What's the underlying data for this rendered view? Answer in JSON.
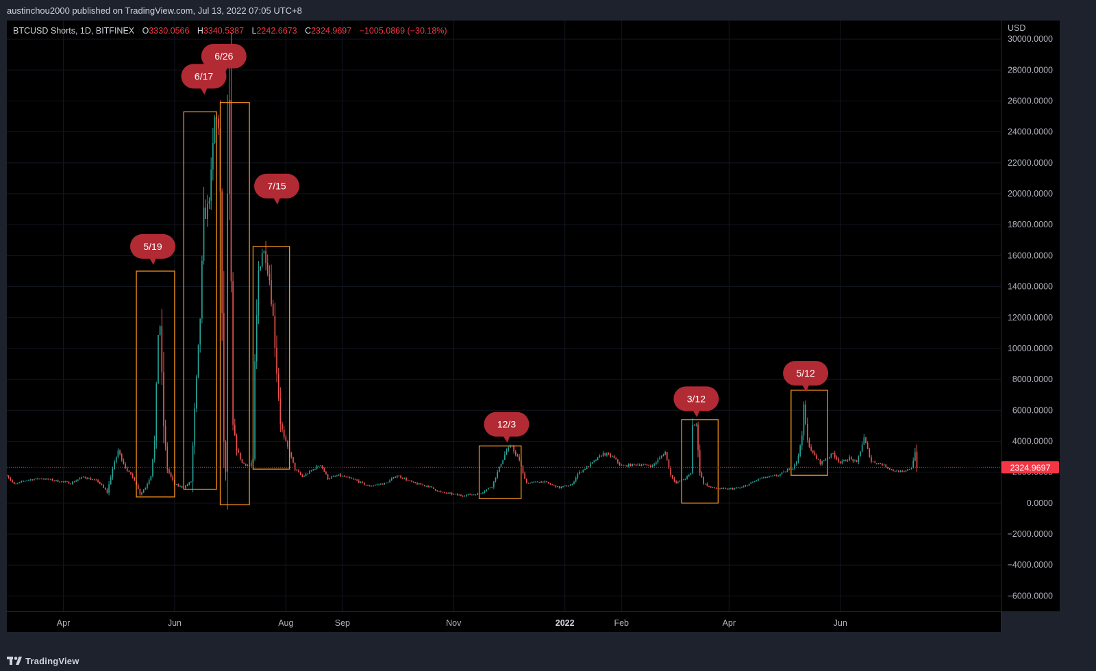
{
  "header": {
    "published_by": "austinchou2000 published on TradingView.com, Jul 13, 2022 07:05 UTC+8"
  },
  "legend": {
    "symbol": "BTCUSD Shorts, 1D, BITFINEX",
    "open_label": "O",
    "open": "3330.0566",
    "high_label": "H",
    "high": "3340.5387",
    "low_label": "L",
    "low": "2242.6673",
    "close_label": "C",
    "close": "2324.9697",
    "change": "−1005.0869 (−30.18%)"
  },
  "footer": {
    "brand": "TradingView"
  },
  "colors": {
    "background": "#000000",
    "frame": "#1e222d",
    "up": "#26a69a",
    "down": "#ef5350",
    "box": "#f7931a",
    "callout": "#b22a33",
    "price_line": "#f23645"
  },
  "chart_data": {
    "type": "candlestick",
    "symbol": "BTCUSD Shorts",
    "interval": "1D",
    "exchange": "BITFINEX",
    "y_axis_unit": "USD",
    "ylim": [
      -7000,
      31200
    ],
    "y_ticks": [
      30000,
      28000,
      26000,
      24000,
      22000,
      20000,
      18000,
      16000,
      14000,
      12000,
      10000,
      8000,
      6000,
      4000,
      2000,
      0,
      -2000,
      -4000,
      -6000
    ],
    "y_tick_labels": [
      "30000.0000",
      "28000.0000",
      "26000.0000",
      "24000.0000",
      "22000.0000",
      "20000.0000",
      "18000.0000",
      "16000.0000",
      "14000.0000",
      "12000.0000",
      "10000.0000",
      "8000.0000",
      "6000.0000",
      "4000.0000",
      "2000.0000",
      "0.0000",
      "−2000.0000",
      "−4000.0000",
      "−6000.0000"
    ],
    "x_range": [
      "2021-03-01",
      "2022-08-28"
    ],
    "x_ticks": [
      {
        "date": "2021-04-01",
        "label": "Apr",
        "bold": false
      },
      {
        "date": "2021-06-01",
        "label": "Jun",
        "bold": false
      },
      {
        "date": "2021-08-01",
        "label": "Aug",
        "bold": false
      },
      {
        "date": "2021-09-01",
        "label": "Sep",
        "bold": false
      },
      {
        "date": "2021-11-01",
        "label": "Nov",
        "bold": false
      },
      {
        "date": "2022-01-01",
        "label": "2022",
        "bold": true
      },
      {
        "date": "2022-02-01",
        "label": "Feb",
        "bold": false
      },
      {
        "date": "2022-04-01",
        "label": "Apr",
        "bold": false
      },
      {
        "date": "2022-06-01",
        "label": "Jun",
        "bold": false
      }
    ],
    "last_price": 2324.9697,
    "last_price_label": "2324.9697",
    "trend": [
      [
        "2021-03-01",
        1800
      ],
      [
        "2021-03-05",
        1200
      ],
      [
        "2021-03-12",
        1500
      ],
      [
        "2021-03-20",
        1600
      ],
      [
        "2021-03-28",
        1450
      ],
      [
        "2021-04-05",
        1300
      ],
      [
        "2021-04-12",
        1700
      ],
      [
        "2021-04-20",
        1400
      ],
      [
        "2021-04-25",
        700
      ],
      [
        "2021-04-28",
        2200
      ],
      [
        "2021-05-01",
        3400
      ],
      [
        "2021-05-05",
        2300
      ],
      [
        "2021-05-10",
        1500
      ],
      [
        "2021-05-13",
        600
      ],
      [
        "2021-05-16",
        1000
      ],
      [
        "2021-05-19",
        1800
      ],
      [
        "2021-05-21",
        4000
      ],
      [
        "2021-05-23",
        11000
      ],
      [
        "2021-05-24",
        11500
      ],
      [
        "2021-05-26",
        5000
      ],
      [
        "2021-05-28",
        2200
      ],
      [
        "2021-06-01",
        1200
      ],
      [
        "2021-06-06",
        1000
      ],
      [
        "2021-06-10",
        1400
      ],
      [
        "2021-06-12",
        6000
      ],
      [
        "2021-06-15",
        12000
      ],
      [
        "2021-06-17",
        18600
      ],
      [
        "2021-06-19",
        19000
      ],
      [
        "2021-06-21",
        21000
      ],
      [
        "2021-06-23",
        24800
      ],
      [
        "2021-06-25",
        24600
      ],
      [
        "2021-06-26",
        20000
      ],
      [
        "2021-06-27",
        12000
      ],
      [
        "2021-06-28",
        4000
      ],
      [
        "2021-06-29",
        2000
      ],
      [
        "2021-06-30",
        20000
      ],
      [
        "2021-07-01",
        25500
      ],
      [
        "2021-07-02",
        14000
      ],
      [
        "2021-07-03",
        5000
      ],
      [
        "2021-07-05",
        3500
      ],
      [
        "2021-07-08",
        2600
      ],
      [
        "2021-07-12",
        2400
      ],
      [
        "2021-07-14",
        2800
      ],
      [
        "2021-07-15",
        9000
      ],
      [
        "2021-07-17",
        15000
      ],
      [
        "2021-07-19",
        16300
      ],
      [
        "2021-07-21",
        16000
      ],
      [
        "2021-07-23",
        14500
      ],
      [
        "2021-07-25",
        12000
      ],
      [
        "2021-07-27",
        8500
      ],
      [
        "2021-07-29",
        5200
      ],
      [
        "2021-07-31",
        4200
      ],
      [
        "2021-08-03",
        3300
      ],
      [
        "2021-08-06",
        2200
      ],
      [
        "2021-08-10",
        1700
      ],
      [
        "2021-08-15",
        2100
      ],
      [
        "2021-08-20",
        2500
      ],
      [
        "2021-08-24",
        1600
      ],
      [
        "2021-08-30",
        1800
      ],
      [
        "2021-09-08",
        1500
      ],
      [
        "2021-09-15",
        1100
      ],
      [
        "2021-09-25",
        1300
      ],
      [
        "2021-10-01",
        1800
      ],
      [
        "2021-10-10",
        1300
      ],
      [
        "2021-10-18",
        1100
      ],
      [
        "2021-10-25",
        700
      ],
      [
        "2021-11-05",
        500
      ],
      [
        "2021-11-15",
        600
      ],
      [
        "2021-11-22",
        1100
      ],
      [
        "2021-11-26",
        2300
      ],
      [
        "2021-11-30",
        3400
      ],
      [
        "2021-12-03",
        3700
      ],
      [
        "2021-12-05",
        3100
      ],
      [
        "2021-12-07",
        2800
      ],
      [
        "2021-12-09",
        1900
      ],
      [
        "2021-12-11",
        1300
      ],
      [
        "2021-12-20",
        1400
      ],
      [
        "2021-12-29",
        1000
      ],
      [
        "2022-01-05",
        1200
      ],
      [
        "2022-01-08",
        1900
      ],
      [
        "2022-01-15",
        2500
      ],
      [
        "2022-01-22",
        3200
      ],
      [
        "2022-01-27",
        3000
      ],
      [
        "2022-02-01",
        2400
      ],
      [
        "2022-02-10",
        2500
      ],
      [
        "2022-02-18",
        2400
      ],
      [
        "2022-02-25",
        3300
      ],
      [
        "2022-02-28",
        1800
      ],
      [
        "2022-03-03",
        1300
      ],
      [
        "2022-03-08",
        1600
      ],
      [
        "2022-03-11",
        1900
      ],
      [
        "2022-03-12",
        5100
      ],
      [
        "2022-03-14",
        5000
      ],
      [
        "2022-03-16",
        2000
      ],
      [
        "2022-03-18",
        1300
      ],
      [
        "2022-03-22",
        1000
      ],
      [
        "2022-03-30",
        900
      ],
      [
        "2022-04-08",
        1000
      ],
      [
        "2022-04-18",
        1600
      ],
      [
        "2022-04-28",
        1800
      ],
      [
        "2022-05-06",
        2300
      ],
      [
        "2022-05-09",
        3000
      ],
      [
        "2022-05-11",
        4500
      ],
      [
        "2022-05-12",
        6200
      ],
      [
        "2022-05-14",
        4000
      ],
      [
        "2022-05-17",
        3200
      ],
      [
        "2022-05-21",
        2600
      ],
      [
        "2022-05-28",
        3200
      ],
      [
        "2022-06-01",
        2600
      ],
      [
        "2022-06-06",
        2900
      ],
      [
        "2022-06-10",
        2600
      ],
      [
        "2022-06-14",
        4200
      ],
      [
        "2022-06-18",
        2700
      ],
      [
        "2022-06-24",
        2500
      ],
      [
        "2022-06-30",
        2100
      ],
      [
        "2022-07-06",
        2000
      ],
      [
        "2022-07-10",
        2300
      ],
      [
        "2022-07-12",
        3300
      ],
      [
        "2022-07-13",
        2325
      ]
    ],
    "highlight_boxes": [
      {
        "start": "2021-05-11",
        "end": "2021-06-01",
        "low": 400,
        "high": 15000
      },
      {
        "start": "2021-06-06",
        "end": "2021-06-24",
        "low": 900,
        "high": 25300
      },
      {
        "start": "2021-06-26",
        "end": "2021-07-12",
        "low": -100,
        "high": 25900
      },
      {
        "start": "2021-07-14",
        "end": "2021-08-03",
        "low": 2200,
        "high": 16600
      },
      {
        "start": "2021-11-15",
        "end": "2021-12-08",
        "low": 300,
        "high": 3700
      },
      {
        "start": "2022-03-06",
        "end": "2022-03-26",
        "low": 0,
        "high": 5400
      },
      {
        "start": "2022-05-05",
        "end": "2022-05-25",
        "low": 1800,
        "high": 7300
      }
    ],
    "callouts": [
      {
        "label": "5/19",
        "date": "2021-05-20",
        "price": 16600
      },
      {
        "label": "6/17",
        "date": "2021-06-17",
        "price": 27600
      },
      {
        "label": "6/26",
        "date": "2021-06-28",
        "price": 28900
      },
      {
        "label": "7/15",
        "date": "2021-07-27",
        "price": 20500
      },
      {
        "label": "12/3",
        "date": "2021-11-30",
        "price": 5100
      },
      {
        "label": "3/12",
        "date": "2022-03-14",
        "price": 6750
      },
      {
        "label": "5/12",
        "date": "2022-05-13",
        "price": 8400
      }
    ]
  }
}
